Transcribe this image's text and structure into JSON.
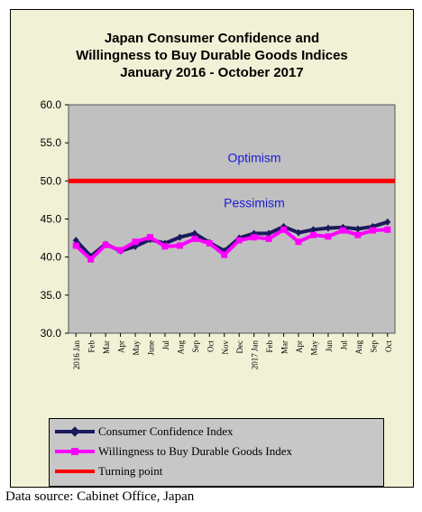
{
  "chart_data": {
    "type": "line",
    "title": [
      "Japan Consumer Confidence and",
      "Willingness to Buy Durable Goods Indices",
      "January 2016 - October 2017"
    ],
    "xlabel": "",
    "ylabel": "",
    "ylim": [
      30,
      60
    ],
    "yticks": [
      "30.0",
      "35.0",
      "40.0",
      "45.0",
      "50.0",
      "55.0",
      "60.0"
    ],
    "grid": false,
    "categories": [
      "2016 Jan",
      "Feb",
      "Mar",
      "Apr",
      "May",
      "June",
      "Jul",
      "Aug",
      "Sep",
      "Oct",
      "Nov",
      "Dec",
      "2017 Jan",
      "Feb",
      "Mar",
      "Apr",
      "May",
      "Jun",
      "Jul",
      "Aug",
      "Sep",
      "Oct"
    ],
    "series": [
      {
        "name": "Consumer Confidence Index",
        "color": "#1a1a5e",
        "marker": "diamond",
        "values": [
          42.2,
          40.1,
          41.7,
          40.8,
          41.4,
          42.3,
          41.8,
          42.6,
          43.1,
          41.9,
          40.8,
          42.5,
          43.1,
          43.1,
          44.0,
          43.2,
          43.6,
          43.8,
          43.9,
          43.7,
          44.0,
          44.6
        ]
      },
      {
        "name": "Willingness to Buy Durable Goods Index",
        "color": "#ff00ff",
        "marker": "square",
        "values": [
          41.5,
          39.7,
          41.6,
          40.9,
          42.0,
          42.6,
          41.4,
          41.5,
          42.4,
          41.8,
          40.3,
          42.2,
          42.6,
          42.4,
          43.6,
          42.0,
          42.9,
          42.7,
          43.5,
          42.9,
          43.5,
          43.6
        ]
      },
      {
        "name": "Turning point",
        "color": "#ff0000",
        "constant": 50.0
      }
    ],
    "annotations": [
      {
        "text": "Optimism",
        "color": "#1a1ad6"
      },
      {
        "text": "Pessimism",
        "color": "#1a1ad6"
      }
    ],
    "legend_position": "bottom",
    "plot_background": "#c0c0c0"
  },
  "legend": {
    "items": [
      {
        "label": "Consumer Confidence Index",
        "color": "#1a1a5e"
      },
      {
        "label": "Willingness to Buy Durable Goods Index",
        "color": "#ff00ff"
      },
      {
        "label": "Turning point",
        "color": "#ff0000"
      }
    ]
  },
  "source": "Data source: Cabinet Office, Japan"
}
